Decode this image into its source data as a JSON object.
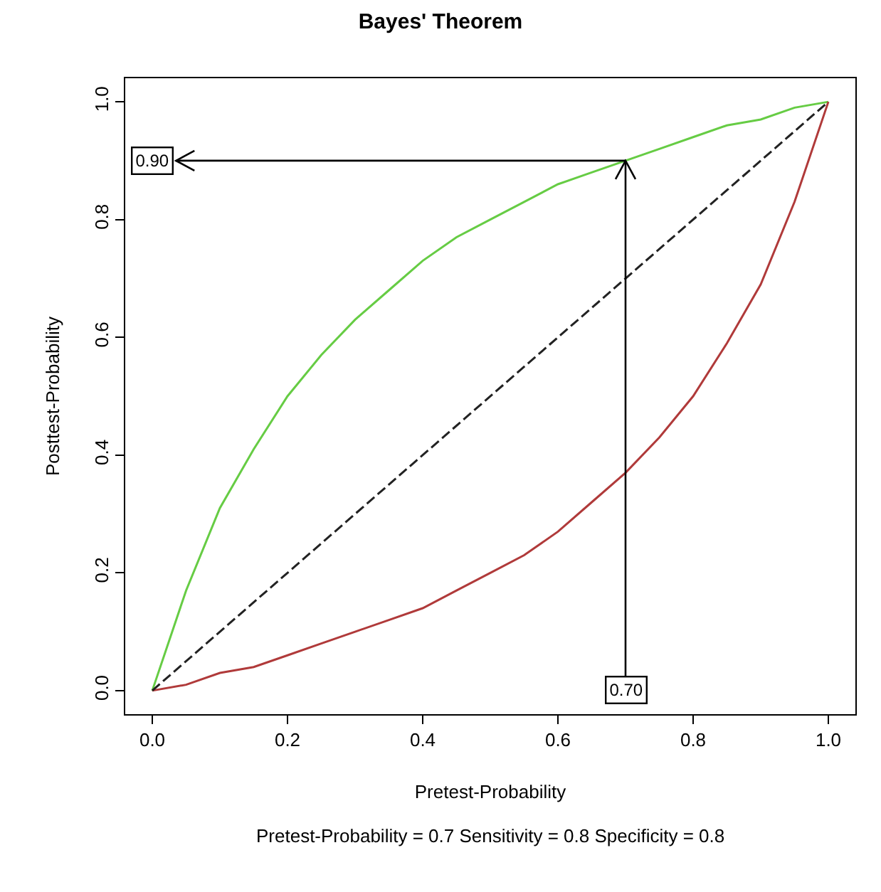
{
  "chart_data": {
    "type": "line",
    "title": "Bayes' Theorem",
    "xlabel": "Pretest-Probability",
    "ylabel": "Posttest-Probability",
    "x": [
      0,
      0.05,
      0.1,
      0.15,
      0.2,
      0.25,
      0.3,
      0.35,
      0.4,
      0.45,
      0.5,
      0.55,
      0.6,
      0.65,
      0.7,
      0.75,
      0.8,
      0.85,
      0.9,
      0.95,
      1
    ],
    "series": [
      {
        "color": "#66cc44",
        "values": [
          0,
          0.17,
          0.31,
          0.41,
          0.5,
          0.57,
          0.63,
          0.68,
          0.73,
          0.77,
          0.8,
          0.83,
          0.86,
          0.88,
          0.9,
          0.92,
          0.94,
          0.96,
          0.97,
          0.99,
          1
        ]
      },
      {
        "color": "#b03a3a",
        "values": [
          0,
          0.01,
          0.03,
          0.04,
          0.06,
          0.08,
          0.1,
          0.12,
          0.14,
          0.17,
          0.2,
          0.23,
          0.27,
          0.32,
          0.37,
          0.43,
          0.5,
          0.59,
          0.69,
          0.83,
          1
        ]
      },
      {
        "color": "#222222",
        "x": [
          0,
          1
        ],
        "values": [
          0,
          1
        ],
        "line_style": "dashed"
      }
    ],
    "annotations": [
      {
        "text": "0.90",
        "x": 0,
        "y": 0.9
      },
      {
        "text": "0.70",
        "x": 0.7,
        "y": 0
      },
      "Pretest-Probability = 0.7 Sensitivity = 0.8 Specificity = 0.8"
    ],
    "ref_lines": [
      {
        "axis": "x",
        "value": 0.7,
        "color": "#000000"
      },
      {
        "axis": "y",
        "value": 0.9,
        "color": "#000000"
      }
    ],
    "xlim": [
      -0.04,
      1.04
    ],
    "ylim": [
      -0.04,
      1.04
    ],
    "xticks": [
      {
        "value": 0,
        "label": "0.0"
      },
      {
        "value": 0.2,
        "label": "0.2"
      },
      {
        "value": 0.4,
        "label": "0.4"
      },
      {
        "value": 0.6,
        "label": "0.6"
      },
      {
        "value": 0.8,
        "label": "0.8"
      },
      {
        "value": 1,
        "label": "1.0"
      }
    ],
    "yticks": [
      {
        "value": 0,
        "label": "0.0"
      },
      {
        "value": 0.2,
        "label": "0.2"
      },
      {
        "value": 0.4,
        "label": "0.4"
      },
      {
        "value": 0.6,
        "label": "0.6"
      },
      {
        "value": 0.8,
        "label": "0.8"
      },
      {
        "value": 1,
        "label": "1.0"
      }
    ],
    "grid": false,
    "marker": "none",
    "line_style": "solid"
  }
}
